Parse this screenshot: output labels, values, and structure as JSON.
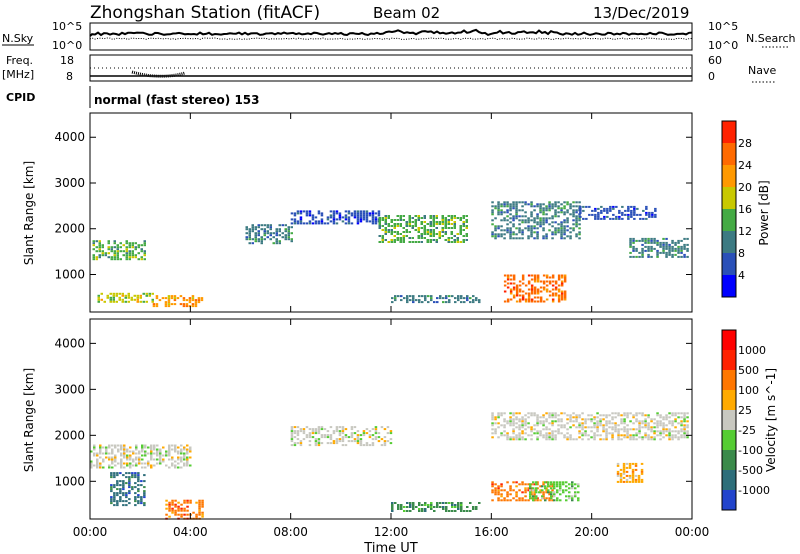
{
  "header": {
    "title": "Zhongshan Station (fitACF)",
    "beam": "Beam 02",
    "date": "13/Dec/2019"
  },
  "panels": {
    "nsky": {
      "label": "N.Sky",
      "left_ticks": [
        "10^5",
        "10^0"
      ],
      "right_label": "N.Search",
      "right_ticks": [
        "10^5",
        "10^0"
      ]
    },
    "freq": {
      "label_line1": "Freq.",
      "label_line2": "[MHz]",
      "left_ticks": [
        "18",
        "8"
      ],
      "right_label": "Nave",
      "right_ticks": [
        "60",
        "0"
      ]
    },
    "cpid": {
      "label": "CPID",
      "text": "normal (fast stereo) 153"
    }
  },
  "chart_data": [
    {
      "type": "heatmap",
      "name": "power",
      "ylabel": "Slant Range [km]",
      "yticks": [
        "1000",
        "2000",
        "3000",
        "4000"
      ],
      "ylim": [
        180,
        4530
      ],
      "colorbar_label": "Power [dB]",
      "colorbar_ticks": [
        "4",
        "8",
        "12",
        "16",
        "20",
        "24",
        "28"
      ],
      "colors": [
        "#0000ff",
        "#2a50b8",
        "#3c7a82",
        "#44aa44",
        "#c8c800",
        "#ff9900",
        "#ff6a00",
        "#ff2200"
      ],
      "xlim_hours": [
        0,
        24
      ],
      "bands": [
        {
          "t0": 0.1,
          "t1": 2.2,
          "r0": 1350,
          "r1": 1750,
          "level": 3
        },
        {
          "t0": 0.3,
          "t1": 2.5,
          "r0": 400,
          "r1": 600,
          "level": 4
        },
        {
          "t0": 2.5,
          "t1": 4.5,
          "r0": 300,
          "r1": 550,
          "level": 5
        },
        {
          "t0": 6.2,
          "t1": 8.0,
          "r0": 1700,
          "r1": 2100,
          "level": 2
        },
        {
          "t0": 8.0,
          "t1": 11.5,
          "r0": 2100,
          "r1": 2400,
          "level": 1
        },
        {
          "t0": 11.5,
          "t1": 15.0,
          "r0": 1700,
          "r1": 2300,
          "level": 3
        },
        {
          "t0": 12.0,
          "t1": 15.5,
          "r0": 400,
          "r1": 550,
          "level": 2
        },
        {
          "t0": 16.0,
          "t1": 19.5,
          "r0": 1800,
          "r1": 2600,
          "level": 2
        },
        {
          "t0": 16.5,
          "t1": 19.0,
          "r0": 400,
          "r1": 1000,
          "level": 6
        },
        {
          "t0": 19.5,
          "t1": 22.5,
          "r0": 2200,
          "r1": 2500,
          "level": 1
        },
        {
          "t0": 21.5,
          "t1": 23.8,
          "r0": 1400,
          "r1": 1800,
          "level": 2
        }
      ]
    },
    {
      "type": "heatmap",
      "name": "velocity",
      "ylabel": "Slant Range [km]",
      "yticks": [
        "1000",
        "2000",
        "3000",
        "4000"
      ],
      "ylim": [
        180,
        4530
      ],
      "colorbar_label": "Velocity [m s^-1]",
      "colorbar_ticks": [
        "1000",
        "500",
        "100",
        "25",
        "-25",
        "-100",
        "-500",
        "-1000"
      ],
      "colors": [
        "#2244cc",
        "#2e6e7a",
        "#3a8a4a",
        "#55cc33",
        "#c8c8c0",
        "#ffaa00",
        "#ff7700",
        "#ff2200",
        "#ff0000"
      ],
      "xlim_hours": [
        0,
        24
      ],
      "bands": [
        {
          "t0": 0.0,
          "t1": 4.0,
          "r0": 1300,
          "r1": 1800,
          "level": 4
        },
        {
          "t0": 0.8,
          "t1": 2.2,
          "r0": 500,
          "r1": 1200,
          "level": 1
        },
        {
          "t0": 3.0,
          "t1": 4.5,
          "r0": 200,
          "r1": 600,
          "level": 6
        },
        {
          "t0": 8.0,
          "t1": 12.0,
          "r0": 1800,
          "r1": 2200,
          "level": 4
        },
        {
          "t0": 12.0,
          "t1": 15.5,
          "r0": 350,
          "r1": 550,
          "level": 2
        },
        {
          "t0": 16.0,
          "t1": 18.5,
          "r0": 600,
          "r1": 1000,
          "level": 6
        },
        {
          "t0": 17.5,
          "t1": 19.5,
          "r0": 600,
          "r1": 1000,
          "level": 3
        },
        {
          "t0": 16.0,
          "t1": 23.8,
          "r0": 1900,
          "r1": 2500,
          "level": 4
        },
        {
          "t0": 21.0,
          "t1": 22.0,
          "r0": 1000,
          "r1": 1400,
          "level": 5
        }
      ]
    }
  ],
  "x_axis": {
    "label": "Time UT",
    "ticks": [
      "00:00",
      "04:00",
      "08:00",
      "12:00",
      "16:00",
      "20:00",
      "00:00"
    ]
  }
}
